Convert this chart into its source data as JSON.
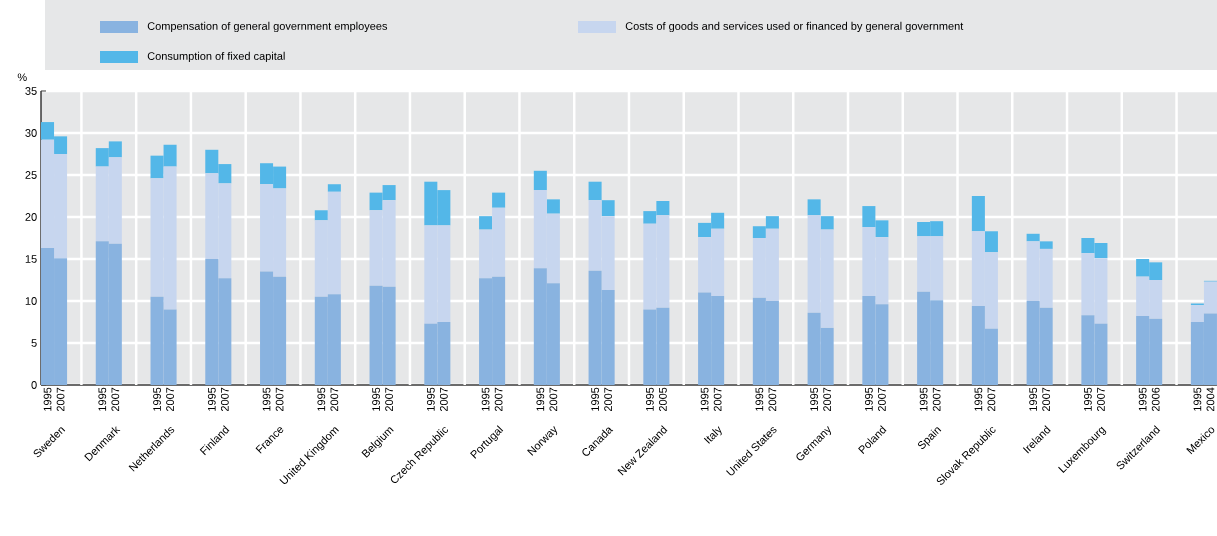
{
  "chart_data": {
    "type": "bar",
    "stacked": true,
    "ylabel": "%",
    "ylim": [
      0,
      35
    ],
    "yticks": [
      0,
      5,
      10,
      15,
      20,
      25,
      30,
      35
    ],
    "grid": true,
    "legend": "top",
    "categories": [
      "1995",
      "2007",
      "1995",
      "2007",
      "1995",
      "2007",
      "1995",
      "2007",
      "1995",
      "2007",
      "1995",
      "2007",
      "1995",
      "2007",
      "1995",
      "2007",
      "1995",
      "2007",
      "1995",
      "2007",
      "1995",
      "2007",
      "1995",
      "2005",
      "1995",
      "2007",
      "1995",
      "2007",
      "1995",
      "2007",
      "1995",
      "2007",
      "1995",
      "2007",
      "1995",
      "2007",
      "1995",
      "2007",
      "1995",
      "2007",
      "1995",
      "2006",
      "1995",
      "2004"
    ],
    "annotations": [
      "Sweden",
      "Denmark",
      "Netherlands",
      "Finland",
      "France",
      "United Kingdom",
      "Belgium",
      "Czech Republic",
      "Portugal",
      "Norway",
      "Canada",
      "New Zealand",
      "Italy",
      "United States",
      "Germany",
      "Poland",
      "Spain",
      "Slovak Republic",
      "Ireland",
      "Luxembourg",
      "Switzerland",
      "Mexico"
    ],
    "series": [
      {
        "name": "Compensation of general government employees",
        "color": "#89b3e0",
        "values": [
          16.3,
          15.1,
          17.1,
          16.8,
          10.5,
          9.0,
          15.0,
          12.7,
          13.5,
          12.9,
          10.5,
          10.8,
          11.8,
          11.7,
          7.3,
          7.5,
          12.7,
          12.9,
          13.9,
          12.1,
          13.6,
          11.3,
          9.0,
          9.2,
          11.0,
          10.6,
          10.4,
          10.0,
          8.6,
          6.8,
          10.6,
          9.6,
          11.1,
          10.1,
          9.4,
          6.7,
          10.0,
          9.2,
          8.3,
          7.3,
          8.2,
          7.9,
          7.5,
          8.5
        ]
      },
      {
        "name": "Costs of goods and services used or financed by general government",
        "color": "#c7d6ef",
        "values": [
          12.9,
          12.4,
          8.9,
          10.3,
          14.1,
          17.0,
          10.2,
          11.3,
          10.4,
          10.5,
          9.1,
          12.2,
          9.0,
          10.3,
          11.7,
          11.5,
          5.8,
          8.2,
          9.3,
          8.3,
          8.4,
          8.8,
          10.2,
          11.0,
          6.6,
          8.0,
          7.1,
          8.6,
          11.6,
          11.7,
          8.2,
          8.0,
          6.6,
          7.6,
          8.9,
          9.1,
          7.1,
          7.0,
          7.4,
          7.8,
          4.7,
          4.6,
          2.0,
          3.8
        ]
      },
      {
        "name": "Consumption of fixed capital",
        "color": "#53b7e8",
        "values": [
          2.1,
          2.1,
          2.2,
          1.9,
          2.7,
          2.6,
          2.8,
          2.3,
          2.5,
          2.6,
          1.2,
          0.9,
          2.1,
          1.8,
          5.2,
          4.2,
          1.6,
          1.8,
          2.3,
          1.7,
          2.2,
          1.9,
          1.5,
          1.7,
          1.7,
          1.9,
          1.4,
          1.5,
          1.9,
          1.6,
          2.5,
          2.0,
          1.7,
          1.8,
          4.2,
          2.5,
          0.9,
          0.9,
          1.8,
          1.8,
          2.1,
          2.1,
          0.2,
          0.1
        ]
      }
    ]
  }
}
